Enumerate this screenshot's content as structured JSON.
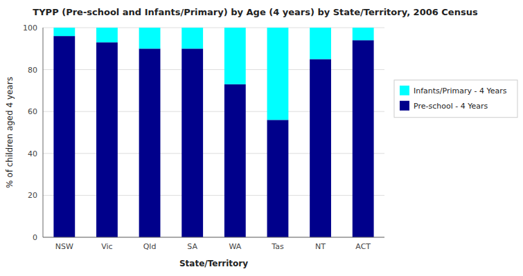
{
  "chart_data": {
    "type": "bar",
    "stacked": true,
    "title": "TYPP (Pre-school and Infants/Primary) by Age (4 years) by State/Territory, 2006 Census",
    "xlabel": "State/Territory",
    "ylabel": "% of children aged 4 years",
    "categories": [
      "NSW",
      "Vic",
      "Qld",
      "SA",
      "WA",
      "Tas",
      "NT",
      "ACT"
    ],
    "series": [
      {
        "name": "Pre-school - 4 Years",
        "color": "#00008B",
        "values": [
          96,
          93,
          90,
          90,
          73,
          56,
          85,
          94
        ]
      },
      {
        "name": "Infants/Primary - 4 Years",
        "color": "#00FFFF",
        "values": [
          4,
          7,
          10,
          10,
          27,
          44,
          15,
          6
        ]
      }
    ],
    "ylim": [
      0,
      100
    ],
    "yticks": [
      0,
      20,
      40,
      60,
      80,
      100
    ],
    "grid": true,
    "legend": "right"
  }
}
